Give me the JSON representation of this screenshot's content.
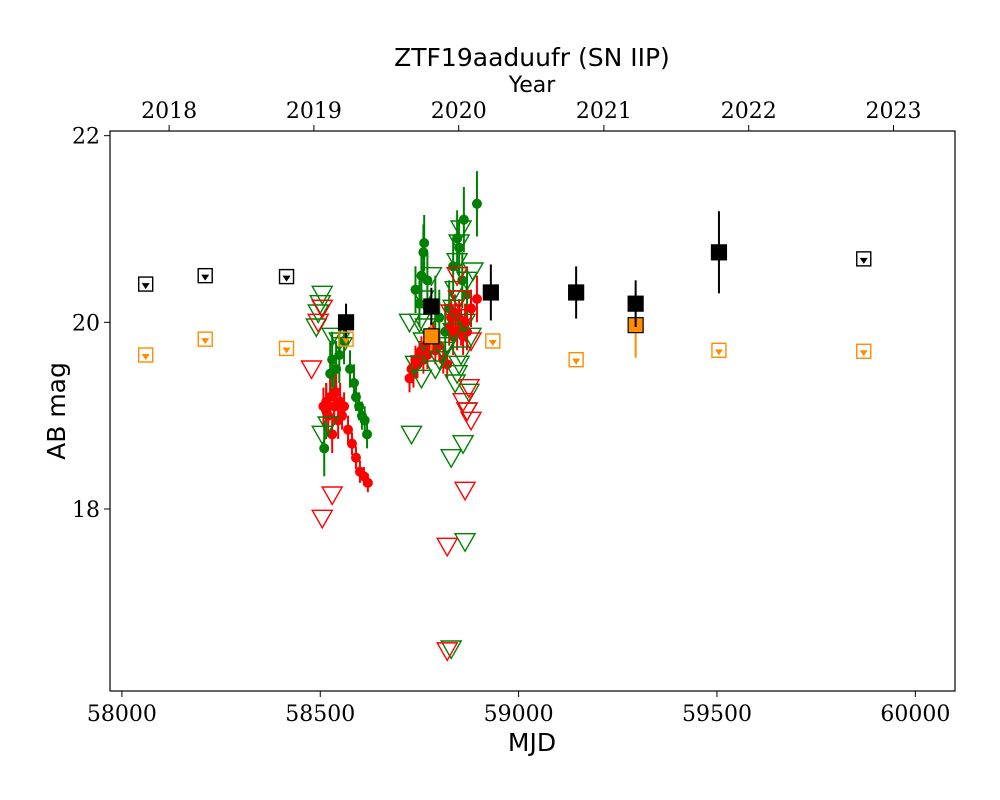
{
  "chart_data": {
    "type": "scatter",
    "title": "ZTF19aaduufr (SN IIP)",
    "xlabel": "MJD",
    "ylabel": "AB mag",
    "top_xlabel": "Year",
    "xlim": [
      57970,
      60100
    ],
    "ylim": [
      22.05,
      16.05
    ],
    "y_inverted": true,
    "grid": false,
    "x_ticks": [
      58000,
      58500,
      59000,
      59500,
      60000
    ],
    "x_tick_labels": [
      "58000",
      "58500",
      "59000",
      "59500",
      "60000"
    ],
    "y_ticks": [
      18,
      20,
      22
    ],
    "y_tick_labels": [
      "18",
      "20",
      "22"
    ],
    "year_ticks": [
      {
        "label": "2018",
        "mjd": 58119
      },
      {
        "label": "2019",
        "mjd": 58484
      },
      {
        "label": "2020",
        "mjd": 58849
      },
      {
        "label": "2021",
        "mjd": 59215
      },
      {
        "label": "2022",
        "mjd": 59580
      },
      {
        "label": "2023",
        "mjd": 59945
      }
    ],
    "colors": {
      "g": "#008000",
      "r": "#ff0000",
      "o": "#ff8c00",
      "c": "#000000"
    },
    "series": [
      {
        "band": "g",
        "kind": "detection",
        "points": [
          [
            58510,
            18.65,
            0.3
          ],
          [
            58515,
            19.05,
            0.3
          ],
          [
            58525,
            19.45,
            0.35
          ],
          [
            58530,
            19.6,
            0.3
          ],
          [
            58535,
            19.25,
            0.25
          ],
          [
            58540,
            19.5,
            0.3
          ],
          [
            58548,
            19.65,
            0.3
          ],
          [
            58560,
            19.8,
            0.25
          ],
          [
            58575,
            19.5,
            0.2
          ],
          [
            58585,
            19.35,
            0.2
          ],
          [
            58590,
            19.2,
            0.15
          ],
          [
            58598,
            19.1,
            0.15
          ],
          [
            58605,
            19.0,
            0.15
          ],
          [
            58612,
            18.95,
            0.15
          ],
          [
            58618,
            18.8,
            0.15
          ],
          [
            58740,
            20.35,
            0.25
          ],
          [
            58750,
            20.2,
            0.25
          ],
          [
            58755,
            20.5,
            0.3
          ],
          [
            58760,
            20.75,
            0.3
          ],
          [
            58762,
            20.85,
            0.3
          ],
          [
            58770,
            20.45,
            0.3
          ],
          [
            58790,
            20.2,
            0.3
          ],
          [
            58800,
            20.05,
            0.3
          ],
          [
            58815,
            19.9,
            0.3
          ],
          [
            58825,
            20.15,
            0.3
          ],
          [
            58835,
            20.6,
            0.3
          ],
          [
            58845,
            20.9,
            0.3
          ],
          [
            58850,
            20.8,
            0.3
          ],
          [
            58858,
            20.45,
            0.3
          ],
          [
            58862,
            21.1,
            0.35
          ],
          [
            58870,
            20.3,
            0.3
          ],
          [
            58895,
            21.27,
            0.35
          ]
        ]
      },
      {
        "band": "r",
        "kind": "detection",
        "points": [
          [
            58508,
            19.1,
            0.2
          ],
          [
            58515,
            19.15,
            0.2
          ],
          [
            58520,
            19.0,
            0.2
          ],
          [
            58525,
            19.2,
            0.2
          ],
          [
            58530,
            18.8,
            0.2
          ],
          [
            58535,
            19.1,
            0.2
          ],
          [
            58540,
            19.25,
            0.2
          ],
          [
            58545,
            18.95,
            0.2
          ],
          [
            58550,
            19.15,
            0.2
          ],
          [
            58555,
            19.0,
            0.15
          ],
          [
            58560,
            19.1,
            0.15
          ],
          [
            58570,
            18.85,
            0.15
          ],
          [
            58580,
            18.7,
            0.12
          ],
          [
            58590,
            18.55,
            0.12
          ],
          [
            58600,
            18.4,
            0.12
          ],
          [
            58610,
            18.35,
            0.1
          ],
          [
            58620,
            18.28,
            0.1
          ],
          [
            58725,
            19.4,
            0.15
          ],
          [
            58730,
            19.5,
            0.15
          ],
          [
            58735,
            19.45,
            0.15
          ],
          [
            58740,
            19.6,
            0.15
          ],
          [
            58745,
            19.55,
            0.15
          ],
          [
            58750,
            19.65,
            0.15
          ],
          [
            58755,
            19.7,
            0.15
          ],
          [
            58760,
            19.6,
            0.15
          ],
          [
            58765,
            19.75,
            0.15
          ],
          [
            58770,
            19.65,
            0.15
          ],
          [
            58775,
            19.8,
            0.15
          ],
          [
            58780,
            19.9,
            0.15
          ],
          [
            58785,
            19.85,
            0.15
          ],
          [
            58790,
            19.7,
            0.15
          ],
          [
            58800,
            19.75,
            0.15
          ],
          [
            58810,
            19.6,
            0.15
          ],
          [
            58820,
            19.55,
            0.15
          ],
          [
            58825,
            19.95,
            0.2
          ],
          [
            58830,
            20.05,
            0.2
          ],
          [
            58835,
            19.85,
            0.2
          ],
          [
            58840,
            20.1,
            0.2
          ],
          [
            58845,
            19.9,
            0.2
          ],
          [
            58850,
            20.05,
            0.2
          ],
          [
            58855,
            19.95,
            0.2
          ],
          [
            58860,
            19.85,
            0.2
          ],
          [
            58865,
            20.0,
            0.2
          ],
          [
            58870,
            19.9,
            0.2
          ],
          [
            58880,
            20.15,
            0.2
          ],
          [
            58895,
            20.25,
            0.25
          ]
        ]
      },
      {
        "band": "g",
        "kind": "upper_limit",
        "points": [
          [
            58505,
            18.8
          ],
          [
            58520,
            18.9
          ],
          [
            58530,
            19.85
          ],
          [
            58548,
            19.8
          ],
          [
            58555,
            19.75
          ],
          [
            58490,
            19.95
          ],
          [
            58495,
            20.1
          ],
          [
            58500,
            20.2
          ],
          [
            58505,
            20.3
          ],
          [
            58730,
            18.8
          ],
          [
            58740,
            19.55
          ],
          [
            58755,
            19.4
          ],
          [
            58760,
            19.8
          ],
          [
            58765,
            19.95
          ],
          [
            58780,
            20.5
          ],
          [
            58790,
            19.5
          ],
          [
            58800,
            19.6
          ],
          [
            58810,
            19.7
          ],
          [
            58820,
            19.75
          ],
          [
            58830,
            18.55
          ],
          [
            58840,
            19.35
          ],
          [
            58845,
            19.45
          ],
          [
            58850,
            19.55
          ],
          [
            58855,
            19.65
          ],
          [
            58860,
            18.7
          ],
          [
            58865,
            17.65
          ],
          [
            58870,
            19.05
          ],
          [
            58875,
            19.25
          ],
          [
            58880,
            19.85
          ],
          [
            58885,
            20.55
          ],
          [
            58865,
            20.0
          ],
          [
            58830,
            16.5
          ],
          [
            58835,
            20.15
          ],
          [
            58840,
            20.35
          ],
          [
            58845,
            20.65
          ],
          [
            58850,
            20.85
          ],
          [
            58855,
            21.0
          ],
          [
            58760,
            20.25
          ],
          [
            58750,
            20.0
          ],
          [
            58725,
            20.0
          ],
          [
            58835,
            19.9
          ],
          [
            58848,
            20.25
          ],
          [
            58870,
            20.45
          ]
        ]
      },
      {
        "band": "r",
        "kind": "upper_limit",
        "points": [
          [
            58505,
            17.9
          ],
          [
            58530,
            18.15
          ],
          [
            58478,
            19.5
          ],
          [
            58495,
            20.0
          ],
          [
            58505,
            20.15
          ],
          [
            58820,
            16.48
          ],
          [
            58820,
            17.6
          ],
          [
            58865,
            18.2
          ],
          [
            58880,
            18.95
          ],
          [
            58870,
            19.05
          ],
          [
            58875,
            19.3
          ],
          [
            58860,
            19.15
          ],
          [
            58830,
            20.1
          ],
          [
            58845,
            20.5
          ],
          [
            58850,
            20.25
          ],
          [
            58880,
            19.8
          ],
          [
            58865,
            20.05
          ]
        ]
      },
      {
        "band": "o",
        "kind": "detection",
        "points": [
          [
            58780,
            19.85,
            0.15
          ],
          [
            59295,
            19.97,
            0.35
          ]
        ]
      },
      {
        "band": "c",
        "kind": "detection",
        "points": [
          [
            58565,
            20.0,
            0.2
          ],
          [
            58780,
            20.17,
            0.2
          ],
          [
            58930,
            20.32,
            0.3
          ],
          [
            59145,
            20.32,
            0.28
          ],
          [
            59295,
            20.2,
            0.25
          ],
          [
            59505,
            20.75,
            0.44
          ]
        ]
      },
      {
        "band": "o",
        "kind": "upper_limit",
        "points": [
          [
            58060,
            19.65
          ],
          [
            58210,
            19.82
          ],
          [
            58415,
            19.72
          ],
          [
            58565,
            19.82
          ],
          [
            58935,
            19.8
          ],
          [
            59145,
            19.6
          ],
          [
            59505,
            19.7
          ],
          [
            59870,
            19.69
          ]
        ]
      },
      {
        "band": "c",
        "kind": "upper_limit",
        "points": [
          [
            58060,
            20.41
          ],
          [
            58210,
            20.5
          ],
          [
            58415,
            20.49
          ],
          [
            59870,
            20.68
          ]
        ]
      }
    ]
  }
}
